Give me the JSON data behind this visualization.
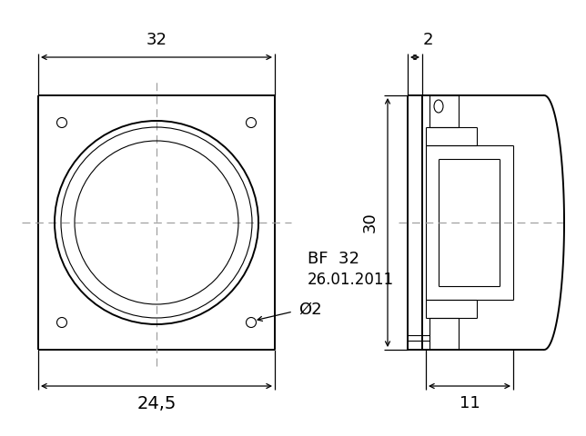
{
  "bg_color": "#ffffff",
  "lc": "#000000",
  "lw_main": 1.4,
  "lw_thin": 0.8,
  "lw_dim": 0.9,
  "label_bf": "BF  32",
  "label_date": "26.01.2011",
  "label_phi": "Ø2",
  "dim_32": "32",
  "dim_245": "24,5",
  "dim_30": "30",
  "dim_2": "2",
  "dim_11": "11",
  "fs_dim": 13,
  "fs_label": 12
}
